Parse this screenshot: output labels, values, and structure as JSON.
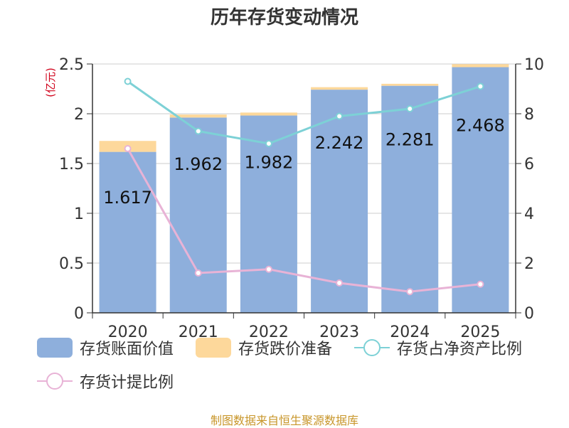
{
  "title": "历年存货变动情况",
  "source": "制图数据来自恒生聚源数据库",
  "colors": {
    "book_value": "#8eafdc",
    "impairment": "#fdd89b",
    "net_assets_ratio": "#7dd1d6",
    "provision_ratio": "#e8b3d6"
  },
  "chart_data": {
    "type": "bar",
    "title": "历年存货变动情况",
    "categories": [
      "2020",
      "2021",
      "2022",
      "2023",
      "2024",
      "2025"
    ],
    "y_left": {
      "unit_label": "(亿元)",
      "range": [
        0,
        2.5
      ],
      "ticks": [
        "0",
        "0.5",
        "1",
        "1.5",
        "2",
        "2.5"
      ]
    },
    "y_right": {
      "range": [
        0,
        10
      ],
      "ticks": [
        "0",
        "2",
        "4",
        "6",
        "8",
        "10"
      ]
    },
    "series": [
      {
        "name": "存货账面价值",
        "type": "bar",
        "stack": "inventory",
        "values": [
          1.617,
          1.962,
          1.982,
          2.242,
          2.281,
          2.468
        ],
        "labels": [
          "1.617",
          "1.962",
          "1.982",
          "2.242",
          "2.281",
          "2.468"
        ]
      },
      {
        "name": "存货跌价准备",
        "type": "bar",
        "stack": "inventory",
        "values": [
          0.11,
          0.03,
          0.03,
          0.025,
          0.02,
          0.03
        ]
      },
      {
        "name": "存货占净资产比例",
        "type": "line",
        "axis": "right",
        "values": [
          9.3,
          7.3,
          6.8,
          7.9,
          8.2,
          9.1
        ]
      },
      {
        "name": "存货计提比例",
        "type": "line",
        "axis": "right",
        "values": [
          6.6,
          1.6,
          1.75,
          1.2,
          0.85,
          1.15
        ]
      }
    ],
    "grid": true,
    "legend_position": "bottom"
  }
}
